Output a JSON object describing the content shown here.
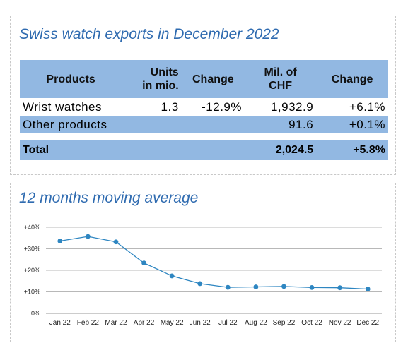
{
  "table": {
    "title": "Swiss watch exports in December 2022",
    "headers": {
      "products": "Products",
      "units_line1": "Units",
      "units_line2": "in mio.",
      "change1": "Change",
      "chf_line1": "Mil. of",
      "chf_line2": "CHF",
      "change2": "Change"
    },
    "rows": [
      {
        "product": "Wrist watches",
        "units": "1.3",
        "units_change": "-12.9%",
        "chf": "1,932.9",
        "chf_change": "+6.1%"
      },
      {
        "product": "Other products",
        "units": "",
        "units_change": "",
        "chf": "91.6",
        "chf_change": "+0.1%"
      }
    ],
    "total": {
      "label": "Total",
      "chf": "2,024.5",
      "chf_change": "+5.8%"
    }
  },
  "colors": {
    "header_fill": "#92b8e2",
    "title": "#2f6bb0",
    "line": "#2e86c1",
    "marker": "#2e86c1"
  },
  "chart_data": {
    "type": "line",
    "title": "12 months moving average",
    "categories": [
      "Jan 22",
      "Feb 22",
      "Mar 22",
      "Apr 22",
      "May 22",
      "Jun 22",
      "Jul 22",
      "Aug 22",
      "Sep 22",
      "Oct 22",
      "Nov 22",
      "Dec 22"
    ],
    "series": [
      {
        "values": [
          33.6,
          35.7,
          33.2,
          23.4,
          17.4,
          13.8,
          12.1,
          12.3,
          12.5,
          12.0,
          11.9,
          11.3
        ]
      }
    ],
    "yticks": [
      "0%",
      "+10%",
      "+20%",
      "+30%",
      "+40%"
    ],
    "ylim": [
      0,
      40
    ],
    "grid": true
  }
}
